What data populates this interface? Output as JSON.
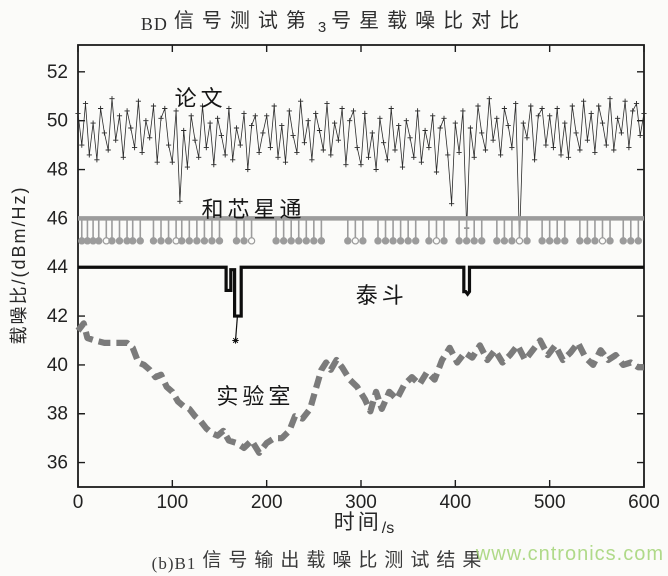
{
  "title": {
    "latin_prefix": "BD",
    "mid": "信号测试第",
    "sub": "3",
    "suffix": "号星载噪比对比"
  },
  "axes": {
    "x_label": "时间",
    "x_unit": "/s",
    "y_label": "载噪比/(dBm/Hz)"
  },
  "caption": {
    "index": "(b)B1",
    "text": "信号输出载噪比测试结果"
  },
  "watermark": {
    "text": "www.cntronics.com",
    "color": "#a2d476"
  },
  "chart_data": {
    "type": "line",
    "title": "BD信号测试第3号星载噪比对比",
    "xlabel": "时间/s",
    "ylabel": "载噪比/(dBm/Hz)",
    "xlim": [
      0,
      600
    ],
    "ylim": [
      35,
      53.1
    ],
    "xticks": [
      0,
      100,
      200,
      300,
      400,
      500,
      600
    ],
    "yticks": [
      36,
      38,
      40,
      42,
      44,
      46,
      48,
      50,
      52
    ],
    "grid": false,
    "legend": "inline-annotations",
    "series": [
      {
        "key": "paper",
        "name": "论文",
        "type": "noisy-line-plus-markers",
        "color": "#2b2b2b",
        "width": 0.8,
        "label_at": {
          "t": 130,
          "v": 50.6
        },
        "x_start": 0,
        "x_step": 4,
        "values": [
          50.3,
          49.0,
          50.7,
          48.6,
          49.9,
          48.4,
          50.5,
          49.5,
          48.8,
          50.9,
          49.2,
          50.2,
          48.5,
          50.4,
          49.7,
          48.9,
          50.8,
          48.7,
          50.0,
          49.3,
          50.6,
          48.3,
          50.1,
          50.5,
          49.0,
          48.3,
          50.4,
          46.7,
          49.6,
          48.1,
          50.2,
          49.2,
          48.5,
          50.6,
          48.9,
          49.9,
          48.2,
          50.1,
          49.4,
          48.6,
          50.5,
          48.4,
          49.7,
          49.0,
          50.3,
          48.0,
          49.8,
          50.2,
          48.7,
          49.5,
          50.2,
          48.9,
          50.6,
          48.5,
          49.8,
          48.3,
          50.4,
          49.4,
          48.7,
          50.8,
          49.1,
          50.0,
          48.4,
          50.3,
          49.6,
          48.8,
          50.7,
          48.6,
          49.9,
          49.2,
          50.5,
          48.2,
          50.0,
          50.4,
          48.9,
          48.2,
          50.3,
          48.5,
          49.5,
          48.0,
          50.1,
          49.1,
          48.4,
          50.5,
          48.8,
          49.8,
          48.1,
          50.0,
          49.3,
          48.5,
          50.4,
          48.3,
          49.6,
          48.9,
          50.2,
          47.9,
          49.7,
          50.1,
          48.6,
          46.6,
          49.9,
          48.7,
          50.4,
          45.6,
          49.7,
          48.5,
          50.6,
          49.5,
          48.8,
          50.9,
          49.2,
          50.1,
          48.6,
          50.5,
          49.8,
          48.9,
          50.7,
          45.1,
          49.9,
          49.3,
          50.6,
          48.4,
          50.2,
          50.5,
          49.0,
          50.2,
          48.9,
          50.5,
          48.6,
          49.9,
          48.5,
          50.6,
          49.5,
          48.8,
          50.8,
          49.2,
          50.3,
          48.7,
          50.6,
          49.9,
          49.0,
          50.9,
          48.8,
          50.1,
          49.5,
          50.8,
          48.9,
          50.4,
          50.7,
          49.4,
          50.3
        ]
      },
      {
        "key": "unicore",
        "name": "和芯星通",
        "type": "lollipop",
        "color": "#9c9c9c",
        "line_width": 4.5,
        "baseline": 46.0,
        "drop_value": 45.08,
        "label_at": {
          "t": 186,
          "v": 46.05
        },
        "stem_times": [
          4,
          10,
          16,
          22,
          30,
          36,
          44,
          52,
          58,
          66,
          80,
          88,
          96,
          104,
          110,
          118,
          126,
          134,
          142,
          150,
          168,
          176,
          184,
          210,
          218,
          226,
          234,
          242,
          250,
          258,
          286,
          294,
          302,
          318,
          326,
          334,
          342,
          350,
          358,
          372,
          380,
          388,
          404,
          412,
          420,
          428,
          444,
          452,
          460,
          468,
          476,
          492,
          500,
          508,
          516,
          532,
          540,
          548,
          556,
          564,
          578,
          586,
          594
        ]
      },
      {
        "key": "taidou",
        "name": "泰斗",
        "type": "step-line",
        "color": "#0d0d0d",
        "width": 3.2,
        "label_at": {
          "t": 322,
          "v": 42.53
        },
        "points": [
          [
            0,
            44
          ],
          [
            157,
            44
          ],
          [
            157,
            43.05
          ],
          [
            162,
            43.05
          ],
          [
            162,
            43.9
          ],
          [
            166,
            43.9
          ],
          [
            166,
            42
          ],
          [
            173,
            42
          ],
          [
            173,
            44
          ],
          [
            409,
            44
          ],
          [
            409,
            43
          ],
          [
            411,
            43
          ],
          [
            413,
            42.9
          ],
          [
            415,
            43
          ],
          [
            415,
            44
          ],
          [
            600,
            44
          ]
        ],
        "spike": {
          "from": [
            169,
            42
          ],
          "to": [
            167,
            41.0
          ],
          "marker": "asterisk"
        }
      },
      {
        "key": "lab",
        "name": "实验室",
        "type": "dashed-line",
        "color": "#7b7b7b",
        "width": 6.2,
        "dash": [
          12,
          6
        ],
        "label_at": {
          "t": 188,
          "v": 38.4
        },
        "points": [
          [
            0,
            41.4
          ],
          [
            6,
            41.7
          ],
          [
            10,
            41.1
          ],
          [
            18,
            41
          ],
          [
            28,
            40.9
          ],
          [
            40,
            40.9
          ],
          [
            52,
            40.9
          ],
          [
            58,
            40.7
          ],
          [
            64,
            40.1
          ],
          [
            70,
            40
          ],
          [
            76,
            39.8
          ],
          [
            82,
            39.5
          ],
          [
            88,
            39.6
          ],
          [
            94,
            39.1
          ],
          [
            100,
            38.9
          ],
          [
            106,
            38.5
          ],
          [
            112,
            38.3
          ],
          [
            118,
            38.2
          ],
          [
            124,
            37.9
          ],
          [
            130,
            37.7
          ],
          [
            136,
            37.4
          ],
          [
            142,
            37.2
          ],
          [
            148,
            37.1
          ],
          [
            154,
            37.3
          ],
          [
            160,
            36.9
          ],
          [
            168,
            36.8
          ],
          [
            176,
            36.6
          ],
          [
            184,
            36.9
          ],
          [
            192,
            36.4
          ],
          [
            200,
            36.8
          ],
          [
            208,
            37
          ],
          [
            216,
            37
          ],
          [
            224,
            37.3
          ],
          [
            230,
            37.9
          ],
          [
            238,
            37.8
          ],
          [
            246,
            38.2
          ],
          [
            252,
            39
          ],
          [
            258,
            39.8
          ],
          [
            263,
            40.1
          ],
          [
            268,
            39.8
          ],
          [
            274,
            40.2
          ],
          [
            280,
            39.9
          ],
          [
            288,
            39.4
          ],
          [
            296,
            39.1
          ],
          [
            304,
            38.6
          ],
          [
            310,
            38.1
          ],
          [
            316,
            38.9
          ],
          [
            322,
            38.2
          ],
          [
            330,
            38.9
          ],
          [
            338,
            38.6
          ],
          [
            346,
            39.2
          ],
          [
            354,
            39.5
          ],
          [
            362,
            39.2
          ],
          [
            370,
            39.7
          ],
          [
            378,
            39.4
          ],
          [
            386,
            40.2
          ],
          [
            394,
            40.7
          ],
          [
            402,
            40.1
          ],
          [
            410,
            40.5
          ],
          [
            418,
            40.3
          ],
          [
            426,
            40.8
          ],
          [
            434,
            40.2
          ],
          [
            442,
            40.6
          ],
          [
            450,
            40.1
          ],
          [
            458,
            40.4
          ],
          [
            466,
            40.8
          ],
          [
            474,
            40.2
          ],
          [
            482,
            40.6
          ],
          [
            490,
            41
          ],
          [
            498,
            40.4
          ],
          [
            506,
            40.8
          ],
          [
            514,
            40.2
          ],
          [
            522,
            40.5
          ],
          [
            530,
            40.9
          ],
          [
            538,
            40.3
          ],
          [
            546,
            40
          ],
          [
            554,
            40.6
          ],
          [
            562,
            40.2
          ],
          [
            570,
            40.4
          ],
          [
            578,
            40
          ],
          [
            586,
            40.1
          ],
          [
            594,
            39.9
          ],
          [
            600,
            39.9
          ]
        ]
      }
    ]
  }
}
